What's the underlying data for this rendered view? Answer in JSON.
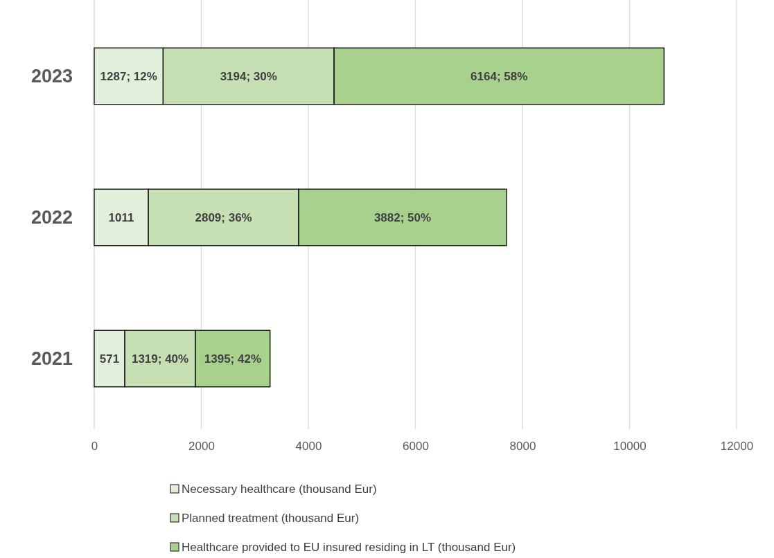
{
  "chart_data": {
    "type": "bar",
    "orientation": "horizontal",
    "stacked": true,
    "categories": [
      "2023",
      "2022",
      "2021"
    ],
    "series": [
      {
        "name": "Necessary healthcare (thousand Eur)",
        "color": "#e2efda",
        "values": [
          1287,
          1011,
          571
        ],
        "value_labels": [
          "1287; 12%",
          "1011",
          "571"
        ]
      },
      {
        "name": "Planned treatment  (thousand Eur)",
        "color": "#c6e0b4",
        "values": [
          3194,
          2809,
          1319
        ],
        "value_labels": [
          "3194;  30%",
          "2809; 36%",
          "1319; 40%"
        ]
      },
      {
        "name": "Healthcare provided to EU insured residing in LT (thousand Eur)",
        "color": "#a9d18e",
        "values": [
          6164,
          3882,
          1395
        ],
        "value_labels": [
          "6164; 58%",
          "3882; 50%",
          "1395; 42%"
        ]
      }
    ],
    "xlim": [
      0,
      12000
    ],
    "xticks": [
      0,
      2000,
      4000,
      6000,
      8000,
      10000,
      12000
    ],
    "grid": "x",
    "legend": "bottom"
  }
}
